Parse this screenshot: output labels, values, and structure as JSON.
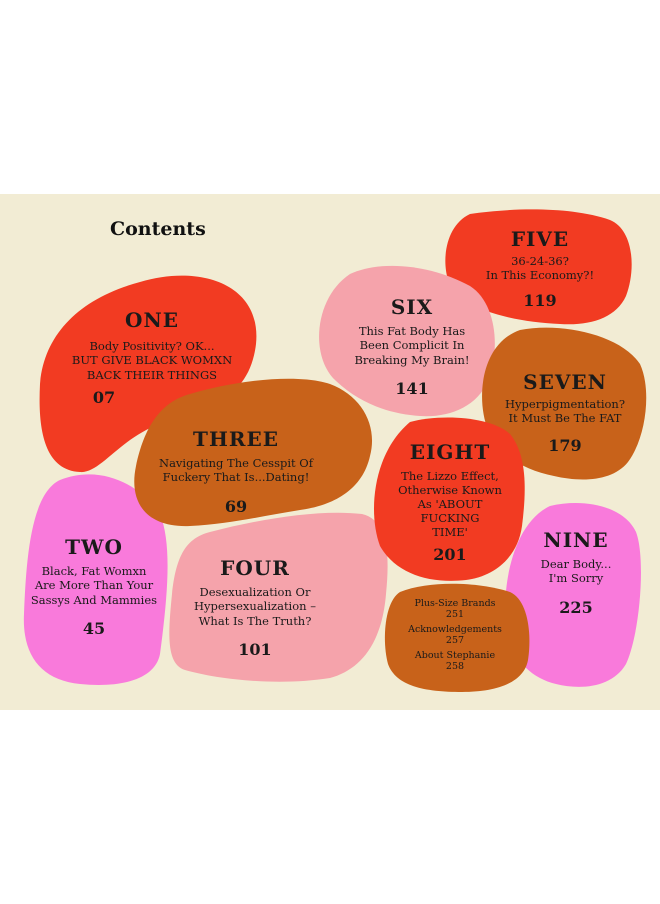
{
  "title": "Contents",
  "colors": {
    "background": "#f2ecd4",
    "red": "#f23b22",
    "pink": "#f5a3ab",
    "brown": "#c8621a",
    "magenta": "#f97adb"
  },
  "chapters": [
    {
      "number": "ONE",
      "title_lines": [
        "Body Positivity? OK...",
        "BUT GIVE BLACK WOMXN",
        "BACK THEIR THINGS"
      ],
      "page": "07",
      "color": "red"
    },
    {
      "number": "TWO",
      "title_lines": [
        "Black, Fat Womxn",
        "Are More Than Your",
        "Sassys And Mammies"
      ],
      "page": "45",
      "color": "magenta"
    },
    {
      "number": "THREE",
      "title_lines": [
        "Navigating The Cesspit Of",
        "Fuckery That Is...Dating!"
      ],
      "page": "69",
      "color": "brown"
    },
    {
      "number": "FOUR",
      "title_lines": [
        "Desexualization Or",
        "Hypersexualization –",
        "What Is The Truth?"
      ],
      "page": "101",
      "color": "pink"
    },
    {
      "number": "FIVE",
      "title_lines": [
        "36-24-36?",
        "In This Economy?!"
      ],
      "page": "119",
      "color": "red"
    },
    {
      "number": "SIX",
      "title_lines": [
        "This Fat Body Has",
        "Been Complicit In",
        "Breaking My Brain!"
      ],
      "page": "141",
      "color": "pink"
    },
    {
      "number": "SEVEN",
      "title_lines": [
        "Hyperpigmentation?",
        "It Must Be The FAT"
      ],
      "page": "179",
      "color": "brown"
    },
    {
      "number": "EIGHT",
      "title_lines": [
        "The Lizzo Effect,",
        "Otherwise Known",
        "As 'ABOUT",
        "FUCKING",
        "TIME'"
      ],
      "page": "201",
      "color": "red"
    },
    {
      "number": "NINE",
      "title_lines": [
        "Dear Body...",
        "I'm Sorry"
      ],
      "page": "225",
      "color": "magenta"
    }
  ],
  "backmatter": [
    {
      "label": "Plus-Size Brands",
      "page": "251"
    },
    {
      "label": "Acknowledgements",
      "page": "257"
    },
    {
      "label": "About Stephanie",
      "page": "258"
    }
  ]
}
